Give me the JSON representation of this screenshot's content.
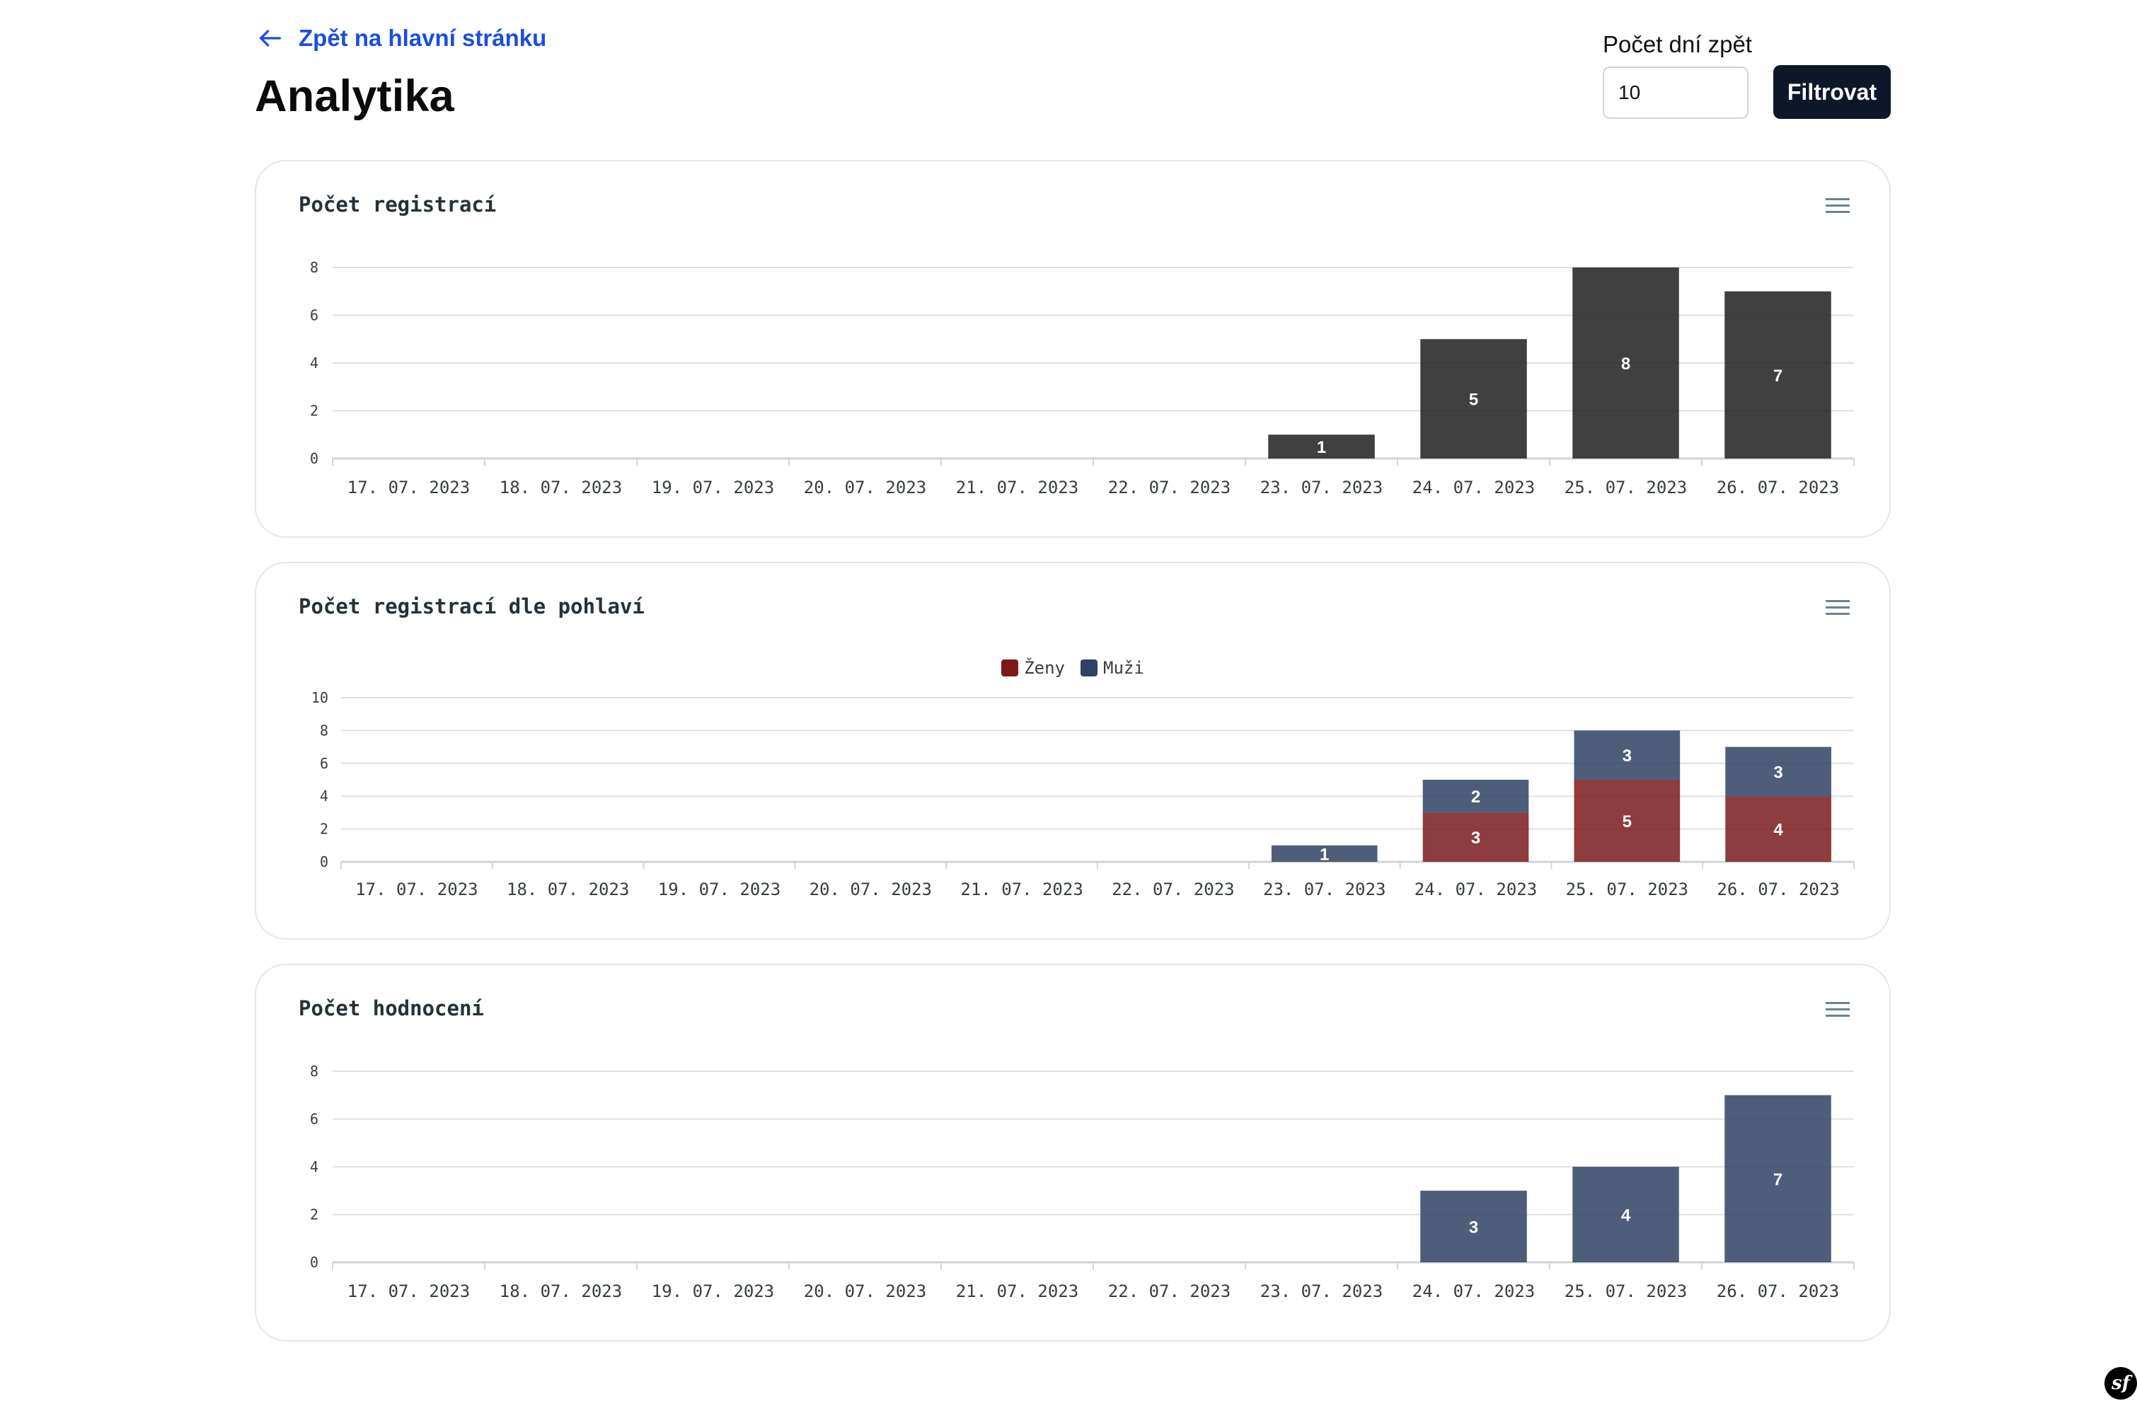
{
  "nav": {
    "back_label": "Zpět na hlavní stránku"
  },
  "page": {
    "title": "Analytika"
  },
  "filter": {
    "label": "Počet dní zpět",
    "value": "10",
    "button_label": "Filtrovat"
  },
  "colors": {
    "bar_dark": "#1f1f1f",
    "zeny": "#7a1a1c",
    "muzi": "#2f4263",
    "hodnoceni": "#2f4263",
    "link": "#1d4ed8"
  },
  "icons": {
    "back": "arrow-left-icon",
    "menu": "hamburger-menu-icon",
    "footer": "symfony-logo-icon"
  },
  "footer": {
    "logo_text": "sf"
  },
  "chart_data": [
    {
      "type": "bar",
      "title": "Počet registrací",
      "categories": [
        "17. 07. 2023",
        "18. 07. 2023",
        "19. 07. 2023",
        "20. 07. 2023",
        "21. 07. 2023",
        "22. 07. 2023",
        "23. 07. 2023",
        "24. 07. 2023",
        "25. 07. 2023",
        "26. 07. 2023"
      ],
      "series": [
        {
          "values": [
            0,
            0,
            0,
            0,
            0,
            0,
            1,
            5,
            8,
            7
          ],
          "color": "#1f1f1f"
        }
      ],
      "yticks": [
        0,
        2,
        4,
        6,
        8
      ],
      "ylim": [
        0,
        8
      ],
      "grid": true,
      "data_labels": true
    },
    {
      "type": "bar",
      "stacked": true,
      "title": "Počet registrací dle pohlaví",
      "categories": [
        "17. 07. 2023",
        "18. 07. 2023",
        "19. 07. 2023",
        "20. 07. 2023",
        "21. 07. 2023",
        "22. 07. 2023",
        "23. 07. 2023",
        "24. 07. 2023",
        "25. 07. 2023",
        "26. 07. 2023"
      ],
      "series": [
        {
          "name": "Ženy",
          "values": [
            0,
            0,
            0,
            0,
            0,
            0,
            0,
            3,
            5,
            4
          ],
          "color": "#7a1a1c"
        },
        {
          "name": "Muži",
          "values": [
            0,
            0,
            0,
            0,
            0,
            0,
            1,
            2,
            3,
            3
          ],
          "color": "#2f4263"
        }
      ],
      "yticks": [
        0,
        2,
        4,
        6,
        8,
        10
      ],
      "ylim": [
        0,
        10
      ],
      "grid": true,
      "legend": "top-center",
      "data_labels": true
    },
    {
      "type": "bar",
      "title": "Počet hodnocení",
      "categories": [
        "17. 07. 2023",
        "18. 07. 2023",
        "19. 07. 2023",
        "20. 07. 2023",
        "21. 07. 2023",
        "22. 07. 2023",
        "23. 07. 2023",
        "24. 07. 2023",
        "25. 07. 2023",
        "26. 07. 2023"
      ],
      "series": [
        {
          "values": [
            0,
            0,
            0,
            0,
            0,
            0,
            0,
            3,
            4,
            7
          ],
          "color": "#2f4263"
        }
      ],
      "yticks": [
        0,
        2,
        4,
        6,
        8
      ],
      "ylim": [
        0,
        8
      ],
      "grid": true,
      "data_labels": true
    }
  ]
}
